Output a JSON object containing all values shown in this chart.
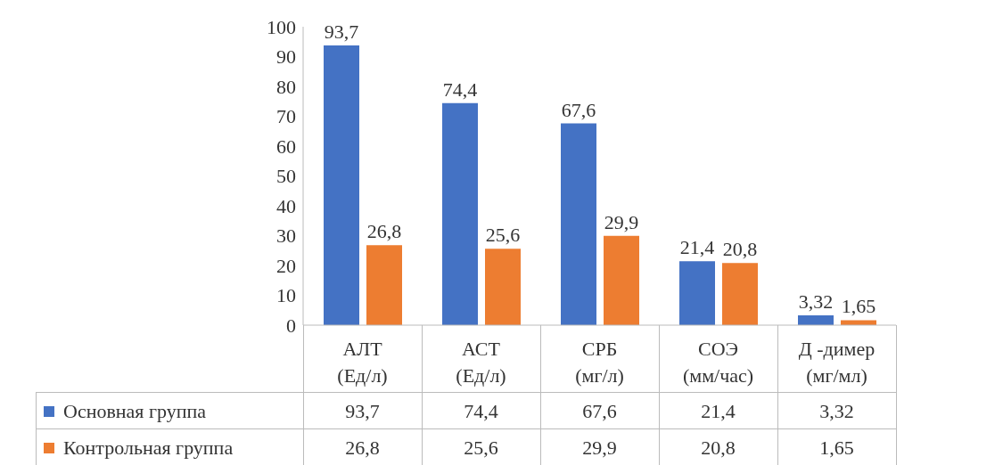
{
  "chart_data": {
    "type": "bar",
    "categories": [
      "АЛТ (Ед/л)",
      "АСТ (Ед/л)",
      "СРБ (мг/л)",
      "СОЭ (мм/час)",
      "Д -димер (мг/мл)"
    ],
    "series": [
      {
        "name": "Основная группа",
        "color": "#4472c4",
        "values": [
          93.7,
          74.4,
          67.6,
          21.4,
          3.32
        ],
        "value_labels": [
          "93,7",
          "74,4",
          "67,6",
          "21,4",
          "3,32"
        ]
      },
      {
        "name": "Контрольная группа",
        "color": "#ed7d31",
        "values": [
          26.8,
          25.6,
          29.9,
          20.8,
          1.65
        ],
        "value_labels": [
          "26,8",
          "25,6",
          "29,9",
          "20,8",
          "1,65"
        ]
      }
    ],
    "ylim": [
      0,
      100
    ],
    "yticks": [
      0,
      10,
      20,
      30,
      40,
      50,
      60,
      70,
      80,
      90,
      100
    ],
    "legend": "bottom"
  }
}
